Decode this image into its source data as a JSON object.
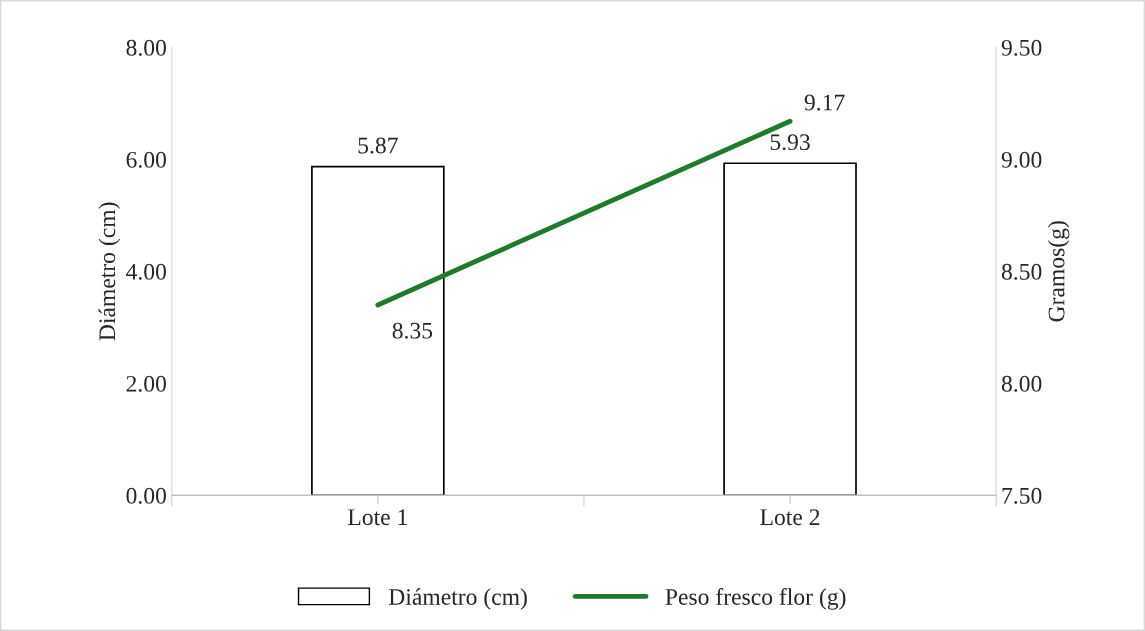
{
  "chart_data": {
    "type": "bar",
    "categories": [
      "Lote 1",
      "Lote 2"
    ],
    "series": [
      {
        "name": "Diámetro (cm)",
        "color": "#ffffff",
        "values": [
          5.87,
          5.93
        ]
      },
      {
        "name": "Peso fresco flor (g)",
        "type": "line",
        "axis": "y2",
        "color": "#217a2b",
        "values": [
          8.35,
          9.17
        ]
      }
    ],
    "ylabel": "Diámetro (cm)",
    "y2label": "Gramos(g)",
    "ylim": [
      0,
      8
    ],
    "yticks": [
      {
        "value": 0,
        "label": "0.00"
      },
      {
        "value": 2,
        "label": "2.00"
      },
      {
        "value": 4,
        "label": "4.00"
      },
      {
        "value": 6,
        "label": "6.00"
      },
      {
        "value": 8,
        "label": "8.00"
      }
    ],
    "y2lim": [
      7.5,
      9.5
    ],
    "y2ticks": [
      {
        "value": 7.5,
        "label": "7.50"
      },
      {
        "value": 8,
        "label": "8.00"
      },
      {
        "value": 8.5,
        "label": "8.50"
      },
      {
        "value": 9,
        "label": "9.00"
      },
      {
        "value": 9.5,
        "label": "9.50"
      }
    ],
    "data_labels": true,
    "legend": "bottom",
    "grid": false,
    "marker": "none",
    "line_style": "solid"
  }
}
